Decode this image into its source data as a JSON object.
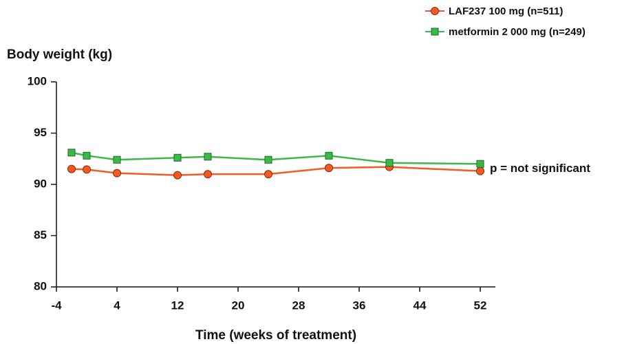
{
  "chart_data": {
    "type": "line",
    "y_label": "Body weight (kg)",
    "x_label": "Time (weeks of treatment)",
    "annotation": "p = not significant",
    "x": [
      -2,
      0,
      4,
      12,
      16,
      24,
      32,
      40,
      52
    ],
    "series": [
      {
        "name": "LAF237 100 mg (n=511)",
        "color": "#f15a24",
        "marker": "circle",
        "values": [
          91.5,
          91.45,
          91.1,
          90.9,
          91.0,
          91.0,
          91.6,
          91.7,
          91.3
        ]
      },
      {
        "name": "metformin 2 000 mg (n=249)",
        "color": "#3cb84a",
        "marker": "square",
        "values": [
          93.1,
          92.8,
          92.4,
          92.6,
          92.7,
          92.4,
          92.8,
          92.1,
          92.0
        ]
      }
    ],
    "xlim": [
      -4,
      54
    ],
    "xticks": [
      -4,
      4,
      12,
      20,
      28,
      36,
      44,
      52
    ],
    "ylim": [
      80,
      100
    ],
    "yticks": [
      80,
      85,
      90,
      95,
      100
    ],
    "legend": "top-right",
    "grid": false
  }
}
